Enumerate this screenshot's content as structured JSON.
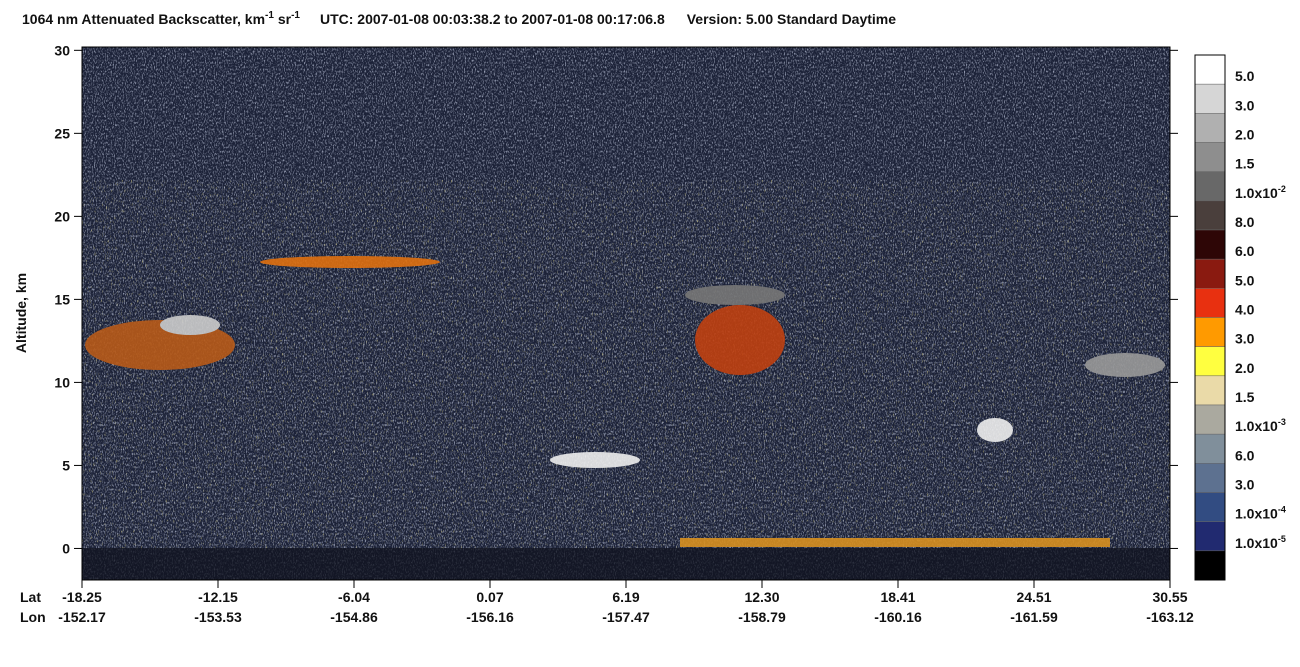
{
  "chart_data": {
    "type": "heatmap",
    "title": {
      "text": "1064 nm Attenuated Backscatter, km",
      "unit_exp1": "-1",
      "unit_mid": " sr",
      "unit_exp2": "-1",
      "utc": "UTC:  2007-01-08 00:03:38.2  to  2007-01-08 00:17:06.8",
      "version": "Version: 5.00  Standard  Daytime"
    },
    "y_label": "Altitude, km",
    "ylim": [
      -1.9,
      30.2
    ],
    "yticks": [
      0,
      5,
      10,
      15,
      20,
      25,
      30
    ],
    "x_row_labels": [
      "Lat",
      "Lon"
    ],
    "categories": [
      {
        "lat": "-18.25",
        "lon": "-152.17"
      },
      {
        "lat": "-12.15",
        "lon": "-153.53"
      },
      {
        "lat": "-6.04",
        "lon": "-154.86"
      },
      {
        "lat": "0.07",
        "lon": "-156.16"
      },
      {
        "lat": "6.19",
        "lon": "-157.47"
      },
      {
        "lat": "12.30",
        "lon": "-158.79"
      },
      {
        "lat": "18.41",
        "lon": "-160.16"
      },
      {
        "lat": "24.51",
        "lon": "-161.59"
      },
      {
        "lat": "30.55",
        "lon": "-163.12"
      }
    ],
    "colorbar": {
      "colors": [
        "#ffffff",
        "#d6d6d6",
        "#b0b0b0",
        "#8e8e8e",
        "#686868",
        "#4a3f3c",
        "#2e0606",
        "#8a1a10",
        "#e83010",
        "#ff9a00",
        "#ffff40",
        "#eadaa8",
        "#aaa99f",
        "#808f9b",
        "#5d7190",
        "#324c82",
        "#212a70",
        "#000000"
      ],
      "labels": [
        {
          "mantissa": "5.0"
        },
        {
          "mantissa": "3.0"
        },
        {
          "mantissa": "2.0"
        },
        {
          "mantissa": "1.5"
        },
        {
          "mantissa": "1.0x10",
          "exponent": "-2"
        },
        {
          "mantissa": "8.0"
        },
        {
          "mantissa": "6.0"
        },
        {
          "mantissa": "5.0"
        },
        {
          "mantissa": "4.0"
        },
        {
          "mantissa": "3.0"
        },
        {
          "mantissa": "2.0"
        },
        {
          "mantissa": "1.5"
        },
        {
          "mantissa": "1.0x10",
          "exponent": "-3"
        },
        {
          "mantissa": "6.0"
        },
        {
          "mantissa": "3.0"
        },
        {
          "mantissa": "1.0x10",
          "exponent": "-4"
        },
        {
          "mantissa": "1.0x10",
          "exponent": "-5"
        }
      ]
    }
  }
}
